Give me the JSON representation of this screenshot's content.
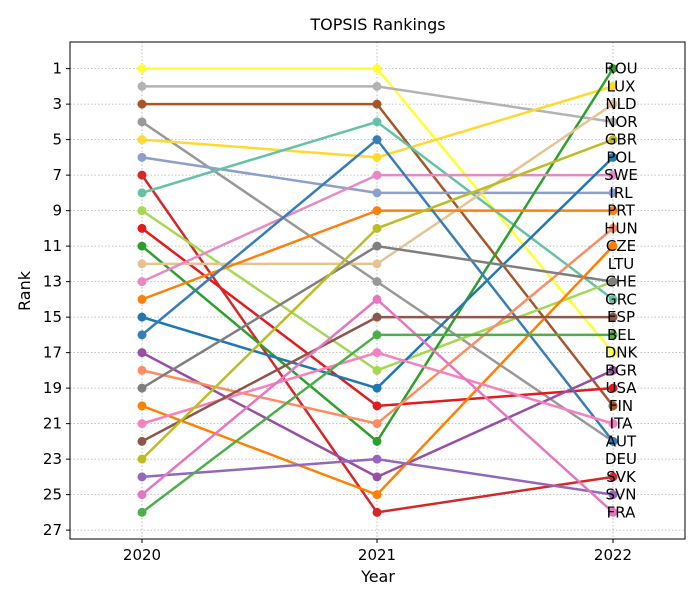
{
  "chart_data": {
    "type": "line",
    "title": "TOPSIS Rankings",
    "xlabel": "Year",
    "ylabel": "Rank",
    "x": [
      "2020",
      "2021",
      "2022"
    ],
    "y_ticks": [
      1,
      3,
      5,
      7,
      9,
      11,
      13,
      15,
      17,
      19,
      21,
      23,
      25,
      27
    ],
    "ylim": [
      27.5,
      -0.5
    ],
    "y_inverted": true,
    "grid": true,
    "series": [
      {
        "name": "ROU",
        "color": "#ffff33",
        "values": [
          1,
          1,
          17
        ]
      },
      {
        "name": "LUX",
        "color": "#b3b3b3",
        "values": [
          2,
          2,
          4
        ]
      },
      {
        "name": "NLD",
        "color": "#a65628",
        "values": [
          3,
          3,
          20
        ]
      },
      {
        "name": "NOR",
        "color": "#999999",
        "values": [
          4,
          13,
          22
        ]
      },
      {
        "name": "GBR",
        "color": "#ffd92f",
        "values": [
          5,
          6,
          2
        ]
      },
      {
        "name": "POL",
        "color": "#8da0cb",
        "values": [
          6,
          8,
          8
        ]
      },
      {
        "name": "SWE",
        "color": "#d62728",
        "values": [
          7,
          26,
          24
        ]
      },
      {
        "name": "IRL",
        "color": "#66c2a5",
        "values": [
          8,
          4,
          14
        ]
      },
      {
        "name": "PRT",
        "color": "#a6d854",
        "values": [
          9,
          18,
          13
        ]
      },
      {
        "name": "HUN",
        "color": "#e41a1c",
        "values": [
          10,
          20,
          19
        ]
      },
      {
        "name": "CZE",
        "color": "#2ca02c",
        "values": [
          11,
          22,
          1
        ]
      },
      {
        "name": "LTU",
        "color": "#e5c494",
        "values": [
          12,
          12,
          3
        ]
      },
      {
        "name": "CHE",
        "color": "#e78ac3",
        "values": [
          13,
          7,
          7
        ]
      },
      {
        "name": "GRC",
        "color": "#ff7f0e",
        "values": [
          14,
          9,
          9
        ]
      },
      {
        "name": "ESP",
        "color": "#1f77b4",
        "values": [
          15,
          19,
          6
        ]
      },
      {
        "name": "BEL",
        "color": "#377eb8",
        "values": [
          16,
          5,
          22
        ]
      },
      {
        "name": "DNK",
        "color": "#984ea3",
        "values": [
          17,
          24,
          18
        ]
      },
      {
        "name": "BGR",
        "color": "#fc8d62",
        "values": [
          18,
          21,
          10
        ]
      },
      {
        "name": "USA",
        "color": "#7f7f7f",
        "values": [
          19,
          11,
          13
        ]
      },
      {
        "name": "FIN",
        "color": "#ff7f00",
        "values": [
          20,
          25,
          11
        ]
      },
      {
        "name": "ITA",
        "color": "#f781bf",
        "values": [
          21,
          17,
          21
        ]
      },
      {
        "name": "AUT",
        "color": "#8c564b",
        "values": [
          22,
          15,
          15
        ]
      },
      {
        "name": "DEU",
        "color": "#bcbd22",
        "values": [
          23,
          10,
          5
        ]
      },
      {
        "name": "SVK",
        "color": "#9467bd",
        "values": [
          24,
          23,
          25
        ]
      },
      {
        "name": "SVN",
        "color": "#e377c2",
        "values": [
          25,
          14,
          26
        ]
      },
      {
        "name": "FRA",
        "color": "#4daf4a",
        "values": [
          26,
          16,
          16
        ]
      }
    ],
    "end_labels": [
      "ROU",
      "LUX",
      "NLD",
      "NOR",
      "GBR",
      "POL",
      "SWE",
      "IRL",
      "PRT",
      "HUN",
      "CZE",
      "LTU",
      "CHE",
      "GRC",
      "ESP",
      "BEL",
      "DNK",
      "BGR",
      "USA",
      "FIN",
      "ITA",
      "AUT",
      "DEU",
      "SVK",
      "SVN",
      "FRA"
    ]
  }
}
